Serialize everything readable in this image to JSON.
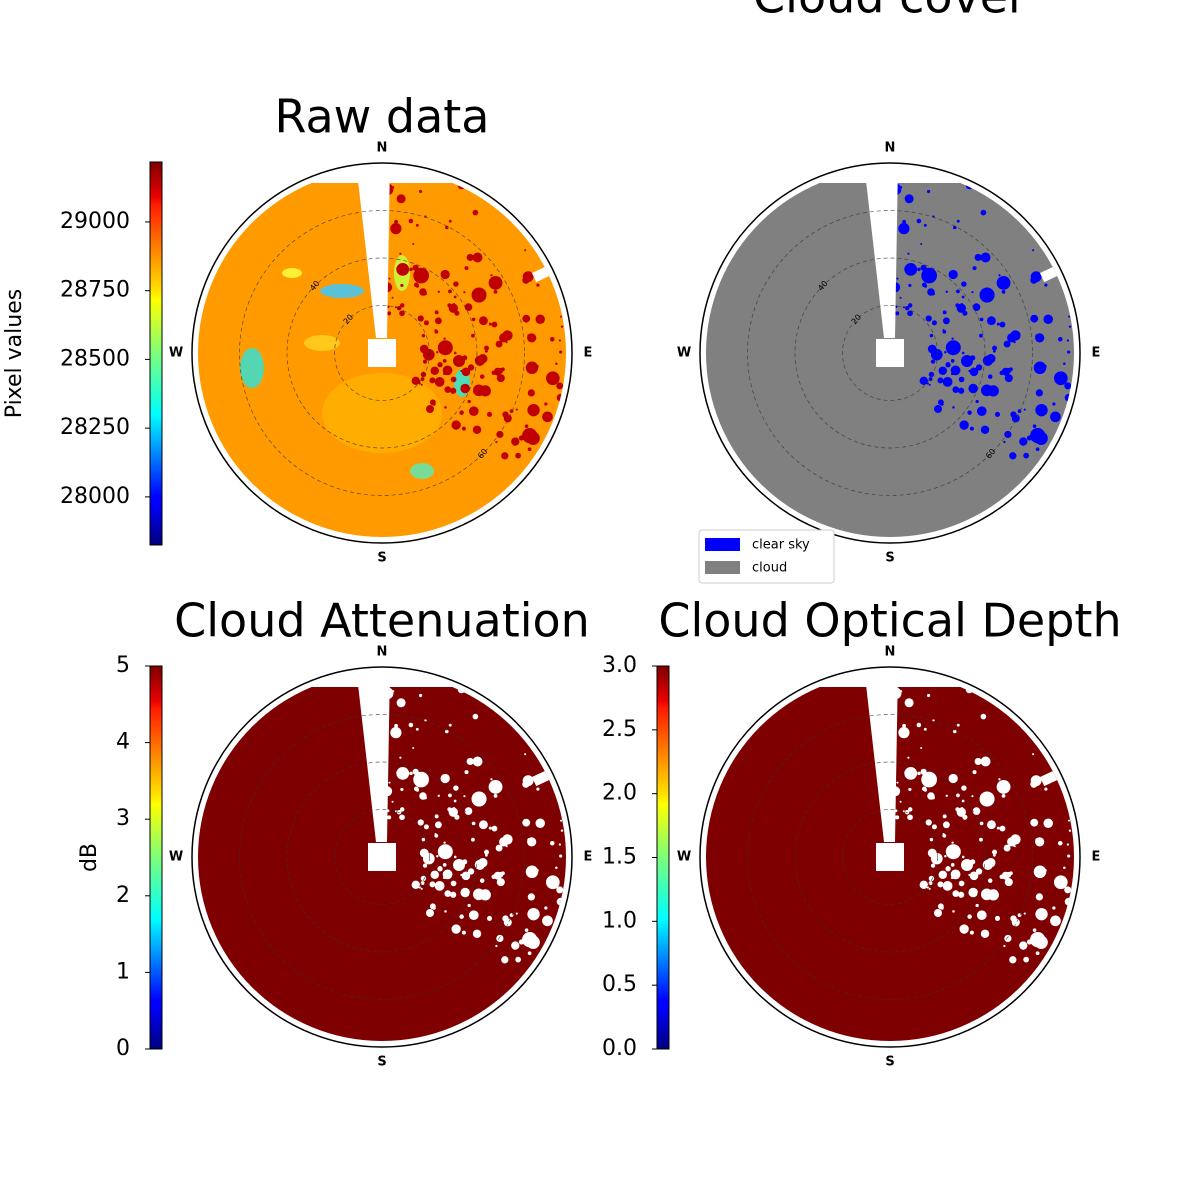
{
  "chart_data": [
    {
      "type": "skymap",
      "title": "Raw data",
      "color": "#ff9a00",
      "spot_color": "#c00000",
      "compass": [
        "N",
        "E",
        "S",
        "W"
      ],
      "rlim": [
        0,
        80
      ],
      "rticks": [
        20,
        40,
        60
      ],
      "show_rtick_labels": true,
      "colorbar": {
        "label": "Pixel values",
        "colormap": "jet",
        "lim": [
          27825,
          29218
        ],
        "ticks": [
          28000,
          28250,
          28500,
          28750,
          29000
        ]
      }
    },
    {
      "type": "skymap",
      "title": "Cloud cover",
      "compass": [
        "N",
        "E",
        "S",
        "W"
      ],
      "rlim": [
        0,
        80
      ],
      "rticks": [
        20,
        40,
        60
      ],
      "show_rtick_labels": true,
      "series": [
        {
          "name": "clear sky",
          "color": "#0000ff"
        },
        {
          "name": "cloud",
          "color": "#808080"
        }
      ]
    },
    {
      "type": "skymap",
      "title": "Cloud Attenuation",
      "color": "#7f0000",
      "spot_color": "#ffffff",
      "compass": [
        "N",
        "E",
        "S",
        "W"
      ],
      "rlim": [
        0,
        80
      ],
      "rticks": [
        20,
        40,
        60
      ],
      "show_rtick_labels": false,
      "colorbar": {
        "label": "dB",
        "colormap": "jet",
        "lim": [
          0,
          5
        ],
        "ticks": [
          0,
          1,
          2,
          3,
          4,
          5
        ]
      }
    },
    {
      "type": "skymap",
      "title": "Cloud Optical Depth",
      "color": "#7f0000",
      "spot_color": "#ffffff",
      "compass": [
        "N",
        "E",
        "S",
        "W"
      ],
      "rlim": [
        0,
        80
      ],
      "rticks": [
        20,
        40,
        60
      ],
      "show_rtick_labels": false,
      "colorbar": {
        "colormap": "jet",
        "lim": [
          0,
          3
        ],
        "ticks": [
          {
            "value": 0,
            "label": "0.0"
          },
          {
            "value": 0.5,
            "label": "0.5"
          },
          {
            "value": 1,
            "label": "1.0"
          },
          {
            "value": 1.5,
            "label": "1.5"
          },
          {
            "value": 2,
            "label": "2.0"
          },
          {
            "value": 2.5,
            "label": "2.5"
          },
          {
            "value": 3,
            "label": "3.0"
          }
        ]
      }
    }
  ]
}
